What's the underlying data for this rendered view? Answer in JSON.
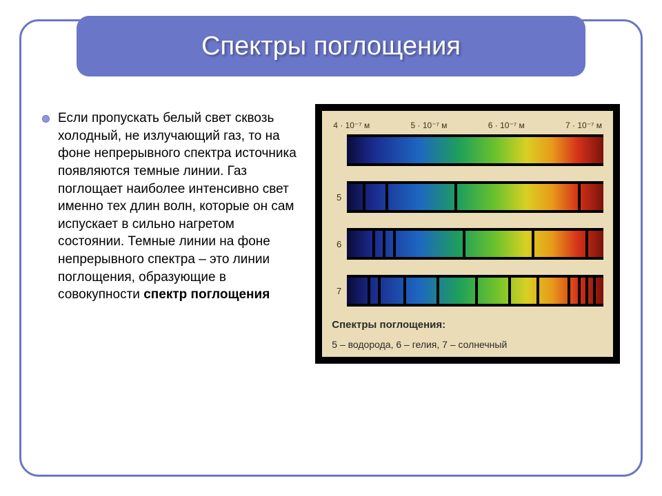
{
  "title": "Спектры поглощения",
  "paragraph_html": "Если пропускать белый свет сквозь холодный, не излучаю­щий газ, то на фоне непре­рывного спектра источника появляются темные линии. Газ поглощает наиболее интенсивно свет именно тех длин волн, которые он сам испускает в сильно нагретом состоянии. Темные линии на фоне непрерывного спектра – это линии поглощения, обра­зующие в совокупности <b>спектр поглощения</b>",
  "axis_labels": [
    "4 · 10⁻⁷ м",
    "5 · 10⁻⁷ м",
    "6 · 10⁻⁷ м",
    "7 · 10⁻⁷ м"
  ],
  "gradient_stops": [
    {
      "pct": 0,
      "color": "#0b0b3a"
    },
    {
      "pct": 10,
      "color": "#1a2a8c"
    },
    {
      "pct": 28,
      "color": "#1e66c2"
    },
    {
      "pct": 44,
      "color": "#1fa05a"
    },
    {
      "pct": 58,
      "color": "#6cc22b"
    },
    {
      "pct": 70,
      "color": "#d8d023"
    },
    {
      "pct": 80,
      "color": "#e89a1a"
    },
    {
      "pct": 90,
      "color": "#d6321a"
    },
    {
      "pct": 100,
      "color": "#7a120a"
    }
  ],
  "spectra": [
    {
      "label": "",
      "lines": []
    },
    {
      "label": "5",
      "lines": [
        6,
        15,
        42,
        90
      ]
    },
    {
      "label": "6",
      "lines": [
        10,
        14,
        18,
        45,
        72,
        93
      ]
    },
    {
      "label": "7",
      "lines": [
        8,
        12,
        22,
        35,
        50,
        63,
        74,
        86,
        90,
        93,
        96
      ]
    }
  ],
  "sub_caption": "Спектры поглощения:",
  "sub_legend": "5 – водорода, 6 – гелия, 7 – солнечный",
  "colors": {
    "accent": "#6a76c7",
    "figure_bg": "#e9dcb7",
    "line": "#000000"
  },
  "fontsize": {
    "title": 38,
    "body": 19,
    "caption": 15,
    "legend": 14
  }
}
